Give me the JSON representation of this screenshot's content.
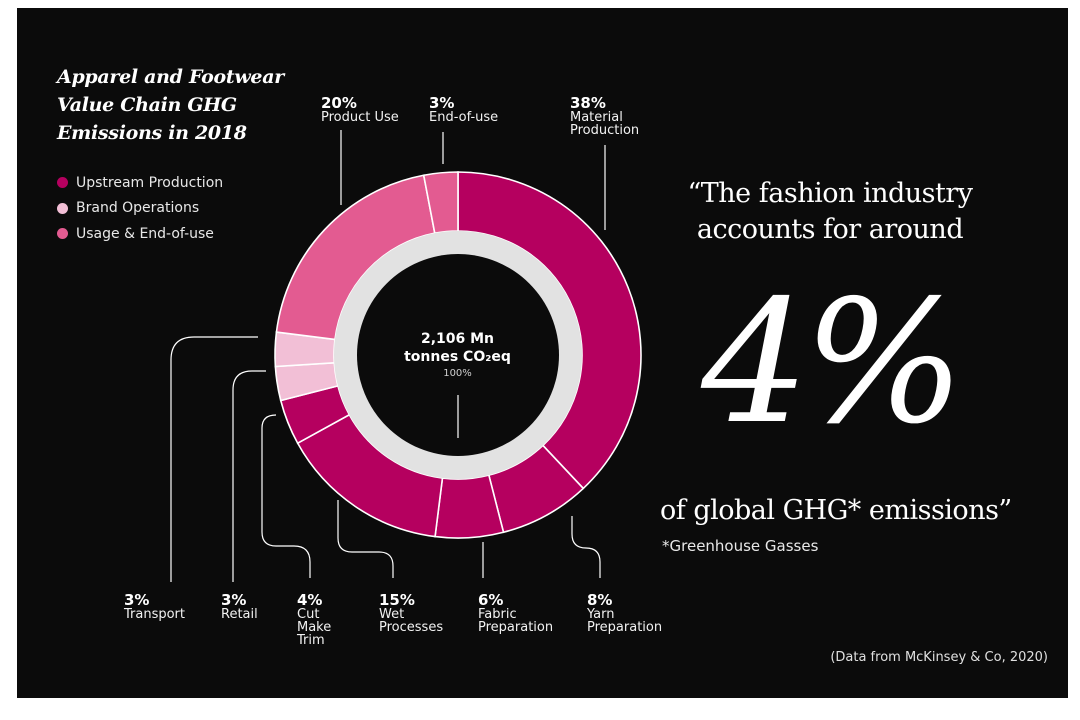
{
  "chart_data": {
    "type": "pie",
    "title": "Apparel and Footwear Value Chain GHG Emissions in 2018",
    "title_lines": [
      "Apparel and Footwear",
      "Value Chain GHG",
      "Emissions in 2018"
    ],
    "legend": {
      "placement": "top-left",
      "entries": [
        {
          "name": "Upstream Production",
          "color": "#b5005f"
        },
        {
          "name": "Brand Operations",
          "color": "#f2bfd6"
        },
        {
          "name": "Usage & End-of-use",
          "color": "#e35b91"
        }
      ]
    },
    "center": {
      "value": "2,106 Mn",
      "unit": "tonnes CO₂eq",
      "total": "100%"
    },
    "inner_ring_color": "#e2e2e2",
    "segments": [
      {
        "pct_label": "38%",
        "name": "Material\nProduction",
        "value": 38,
        "group": "Upstream Production",
        "color": "#b5005f"
      },
      {
        "pct_label": "8%",
        "name": "Yarn\nPreparation",
        "value": 8,
        "group": "Upstream Production",
        "color": "#b5005f"
      },
      {
        "pct_label": "6%",
        "name": "Fabric\nPreparation",
        "value": 6,
        "group": "Upstream Production",
        "color": "#b5005f"
      },
      {
        "pct_label": "15%",
        "name": "Wet\nProcesses",
        "value": 15,
        "group": "Upstream Production",
        "color": "#b5005f"
      },
      {
        "pct_label": "4%",
        "name": "Cut\nMake\nTrim",
        "value": 4,
        "group": "Upstream Production",
        "color": "#b5005f"
      },
      {
        "pct_label": "3%",
        "name": "Retail",
        "value": 3,
        "group": "Brand Operations",
        "color": "#f2bfd6"
      },
      {
        "pct_label": "3%",
        "name": "Transport",
        "value": 3,
        "group": "Brand Operations",
        "color": "#f2bfd6"
      },
      {
        "pct_label": "20%",
        "name": "Product Use",
        "value": 20,
        "group": "Usage & End-of-use",
        "color": "#e35b91"
      },
      {
        "pct_label": "3%",
        "name": "End-of-use",
        "value": 3,
        "group": "Usage & End-of-use",
        "color": "#e35b91"
      }
    ]
  },
  "quote": {
    "line1": "“The fashion industry",
    "line2": "accounts for around",
    "big": "4%",
    "line3": "of global GHG* emissions”",
    "footnote": "*Greenhouse Gasses"
  },
  "source": "(Data from McKinsey & Co, 2020)"
}
